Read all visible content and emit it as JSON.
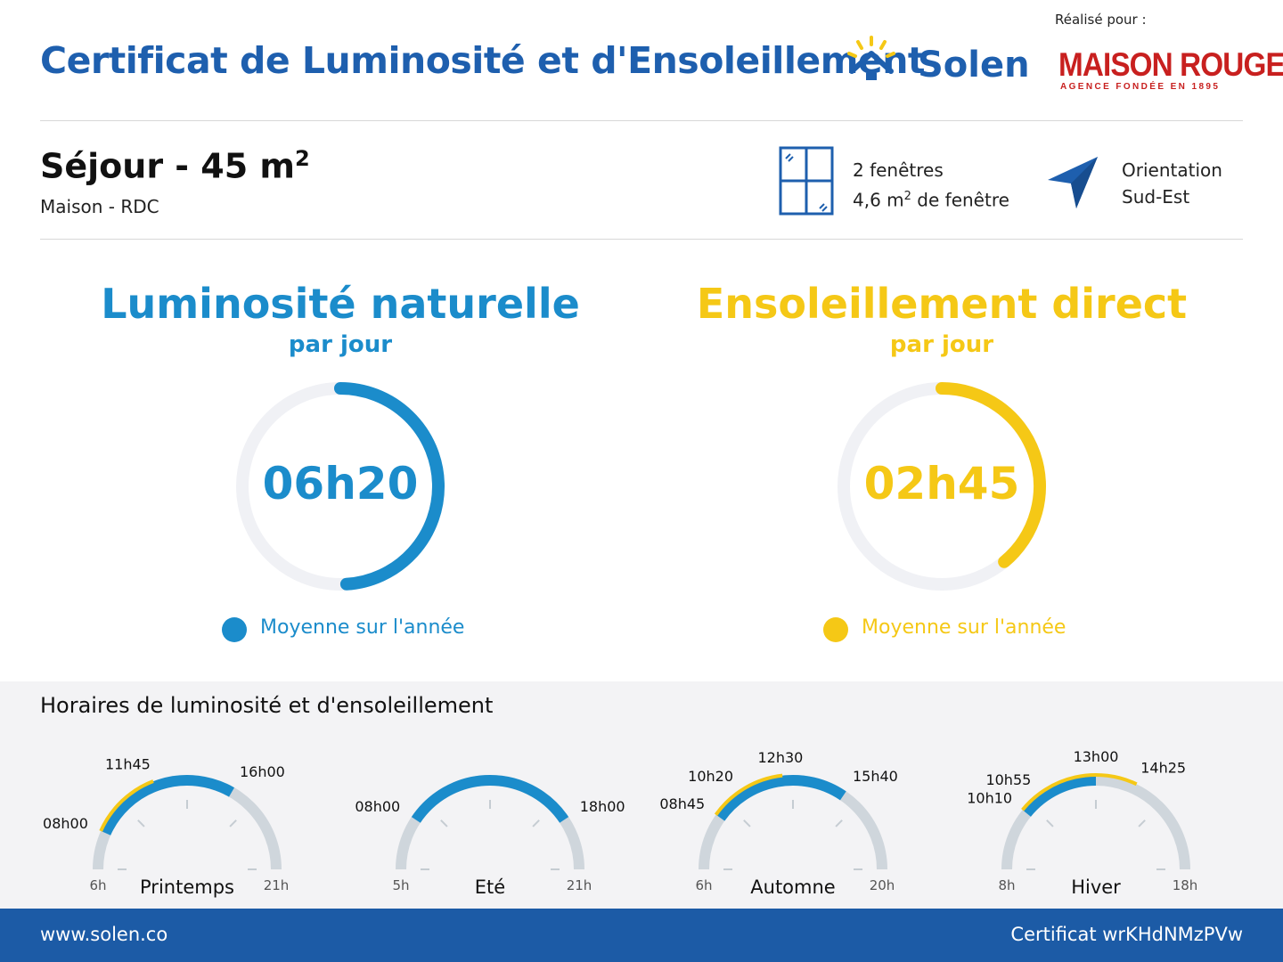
{
  "header": {
    "title": "Certificat de Luminosité et d'Ensoleillement",
    "brand": "Solen",
    "realise_pour": "Réalisé pour :",
    "partner_name": "MAISON ROUGE",
    "partner_tagline": "AGENCE FONDÉE EN 1895"
  },
  "room": {
    "name": "Séjour - 45 m",
    "name_sup": "2",
    "subtitle": "Maison - RDC",
    "windows_line1": "2 fenêtres",
    "windows_line2_pre": "4,6 m",
    "windows_line2_sup": "2",
    "windows_line2_post": " de fenêtre",
    "orientation_label": "Orientation",
    "orientation_value": "Sud-Est"
  },
  "luminosite": {
    "title": "Luminosité naturelle",
    "subtitle": "par jour",
    "value": "06h20",
    "fraction": 0.49,
    "legend": "Moyenne sur l'année",
    "color": "#1b8ccb"
  },
  "ensoleillement": {
    "title": "Ensoleillement direct",
    "subtitle": "par jour",
    "value": "02h45",
    "fraction": 0.39,
    "legend": "Moyenne sur l'année",
    "color": "#f5c816"
  },
  "schedule": {
    "title": "Horaires de luminosité et d'ensoleillement",
    "seasons": [
      {
        "name": "Printemps",
        "start": "6h",
        "end": "21h",
        "start_h": 6,
        "end_h": 21,
        "light": [
          8.0,
          16.0
        ],
        "sun": [
          8.0,
          11.75
        ],
        "labels": [
          {
            "text": "08h00",
            "h": 8.0
          },
          {
            "text": "11h45",
            "h": 11.75
          },
          {
            "text": "16h00",
            "h": 16.0
          }
        ]
      },
      {
        "name": "Eté",
        "start": "5h",
        "end": "21h",
        "start_h": 5,
        "end_h": 21,
        "light": [
          8.0,
          18.0
        ],
        "sun": null,
        "labels": [
          {
            "text": "08h00",
            "h": 8.0
          },
          {
            "text": "18h00",
            "h": 18.0
          }
        ]
      },
      {
        "name": "Automne",
        "start": "6h",
        "end": "20h",
        "start_h": 6,
        "end_h": 20,
        "light": [
          8.75,
          15.667
        ],
        "sun": [
          8.75,
          12.5
        ],
        "labels": [
          {
            "text": "08h45",
            "h": 8.75
          },
          {
            "text": "10h20",
            "h": 10.333
          },
          {
            "text": "12h30",
            "h": 12.5
          },
          {
            "text": "15h40",
            "h": 15.667
          }
        ]
      },
      {
        "name": "Hiver",
        "start": "8h",
        "end": "18h",
        "start_h": 8,
        "end_h": 18,
        "light": [
          10.167,
          13.0
        ],
        "sun": [
          10.167,
          14.417
        ],
        "labels": [
          {
            "text": "10h10",
            "h": 10.167
          },
          {
            "text": "10h55",
            "h": 10.917
          },
          {
            "text": "13h00",
            "h": 13.0
          },
          {
            "text": "14h25",
            "h": 14.417
          }
        ]
      }
    ]
  },
  "footer": {
    "website": "www.solen.co",
    "certificate": "Certificat wrKHdNMzPVw"
  },
  "colors": {
    "blue_title": "#1e5fae",
    "light_blue": "#1b8ccb",
    "yellow": "#f5c816",
    "gauge_track": "#f0f1f5",
    "season_track": "#cfd6dc",
    "footer_bg": "#1c5ba6"
  }
}
